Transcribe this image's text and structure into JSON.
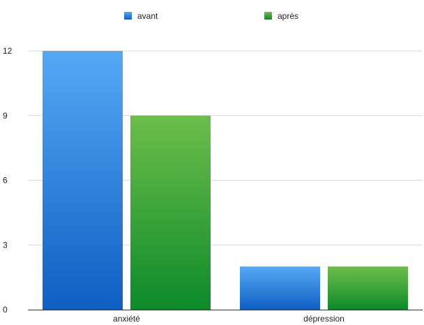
{
  "chart_data": {
    "type": "bar",
    "categories": [
      "anxiété",
      "dépression"
    ],
    "series": [
      {
        "name": "avant",
        "values": [
          12,
          2
        ],
        "color_top": "#55a9f5",
        "color_bottom": "#0e5fc2"
      },
      {
        "name": "après",
        "values": [
          9,
          2
        ],
        "color_top": "#6cbe4a",
        "color_bottom": "#0d8a2a"
      }
    ],
    "yticks": [
      0,
      3,
      6,
      9,
      12
    ],
    "ylim": [
      0,
      12
    ],
    "grid": true,
    "legend_position": "top"
  }
}
